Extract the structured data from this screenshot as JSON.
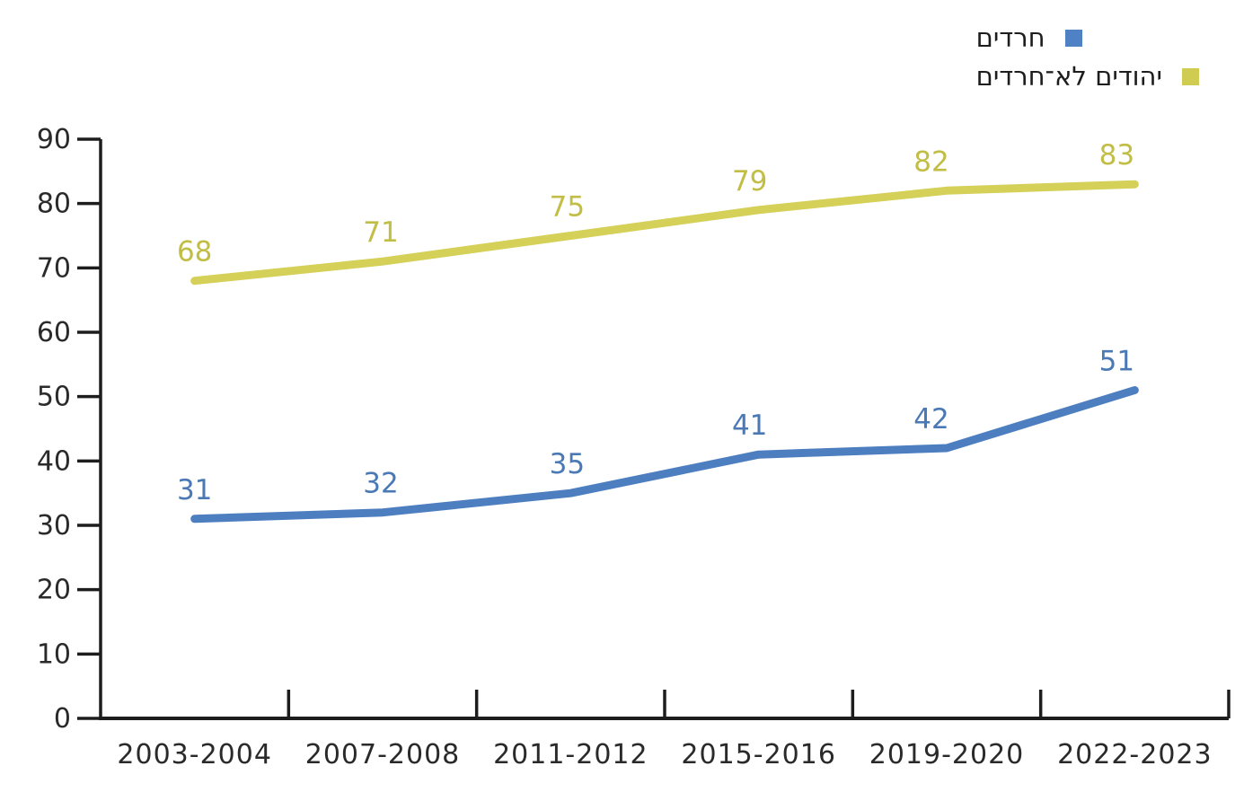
{
  "legend": {
    "items": [
      {
        "label": "חרדים",
        "color": "#4e82c4"
      },
      {
        "label": "יהודים לא־חרדים",
        "color": "#d0cc52"
      }
    ]
  },
  "chart_data": {
    "type": "line",
    "categories": [
      "2003-2004",
      "2007-2008",
      "2011-2012",
      "2015-2016",
      "2019-2020",
      "2022-2023"
    ],
    "series": [
      {
        "name": "חרדים",
        "values": [
          31,
          32,
          35,
          41,
          42,
          51
        ],
        "color": "#4d7ec0",
        "label_color": "#4a79b5"
      },
      {
        "name": "יהודים לא־חרדים",
        "values": [
          68,
          71,
          75,
          79,
          82,
          83
        ],
        "color": "#d4d058",
        "label_color": "#c1bd45"
      }
    ],
    "title": "",
    "xlabel": "",
    "ylabel": "",
    "ylim": [
      0,
      90
    ],
    "y_tick_step": 10,
    "y_tick_labels": [
      "0",
      "10",
      "20",
      "30",
      "40",
      "50",
      "60",
      "70",
      "80",
      "90"
    ],
    "grid": false,
    "legend_position": "top-right",
    "axis_color": "#1d1d1d",
    "text_color": "#2a2a2a"
  }
}
